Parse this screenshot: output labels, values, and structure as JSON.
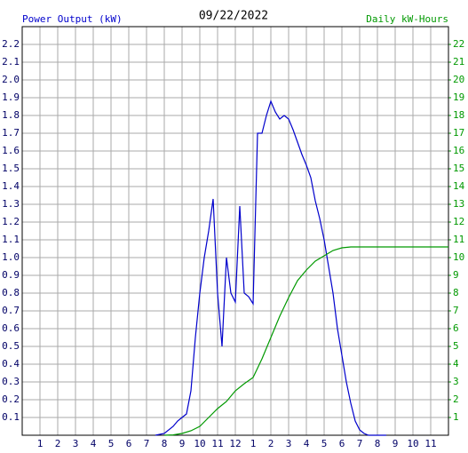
{
  "chart_data": {
    "type": "line",
    "title": "09/22/2022",
    "y_label": "Power Output (kW)",
    "y2_label": "Daily kW-Hours",
    "xlim": [
      0,
      24
    ],
    "xticks": [
      1,
      2,
      3,
      4,
      5,
      6,
      7,
      8,
      9,
      10,
      11,
      12,
      {
        "value": 13,
        "label": "1"
      },
      {
        "value": 14,
        "label": "2"
      },
      {
        "value": 15,
        "label": "3"
      },
      {
        "value": 16,
        "label": "4"
      },
      {
        "value": 17,
        "label": "5"
      },
      {
        "value": 18,
        "label": "6"
      },
      {
        "value": 19,
        "label": "7"
      },
      {
        "value": 20,
        "label": "8"
      },
      {
        "value": 21,
        "label": "9"
      },
      {
        "value": 22,
        "label": "10"
      },
      {
        "value": 23,
        "label": "11"
      }
    ],
    "ylim": [
      0,
      2.3
    ],
    "yticks": [
      0.1,
      0.2,
      0.3,
      0.4,
      0.5,
      0.6,
      0.7,
      0.8,
      0.9,
      {
        "value": 1,
        "label": "1.0"
      },
      1.1,
      1.2,
      1.3,
      1.4,
      1.5,
      1.6,
      1.7,
      1.8,
      1.9,
      {
        "value": 2,
        "label": "2.0"
      },
      2.1,
      2.2
    ],
    "y2lim": [
      0,
      23
    ],
    "y2ticks": [
      1,
      2,
      3,
      4,
      5,
      6,
      7,
      8,
      9,
      10,
      11,
      12,
      13,
      14,
      15,
      16,
      17,
      18,
      19,
      20,
      21,
      22
    ],
    "grid": true,
    "series": [
      {
        "name": "Power Output (kW)",
        "color": "#0000cc",
        "x": [
          7.5,
          8,
          8.5,
          8.75,
          9,
          9.25,
          9.5,
          9.75,
          10,
          10.25,
          10.5,
          10.75,
          11,
          11.25,
          11.5,
          11.75,
          12,
          12.25,
          12.5,
          12.75,
          13,
          13.25,
          13.5,
          13.75,
          14,
          14.25,
          14.5,
          14.75,
          15,
          15.25,
          15.5,
          15.75,
          16,
          16.25,
          16.5,
          16.75,
          17,
          17.25,
          17.5,
          17.75,
          18,
          18.25,
          18.5,
          18.75,
          19,
          19.25,
          19.5,
          20.5
        ],
        "values": [
          0,
          0.01,
          0.05,
          0.08,
          0.1,
          0.12,
          0.25,
          0.55,
          0.8,
          1.0,
          1.15,
          1.33,
          0.8,
          0.5,
          1.0,
          0.8,
          0.75,
          1.29,
          0.8,
          0.78,
          0.74,
          1.7,
          1.7,
          1.8,
          1.88,
          1.82,
          1.78,
          1.8,
          1.78,
          1.72,
          1.65,
          1.58,
          1.52,
          1.45,
          1.32,
          1.22,
          1.1,
          0.95,
          0.8,
          0.6,
          0.45,
          0.3,
          0.18,
          0.08,
          0.03,
          0.01,
          0,
          0
        ]
      },
      {
        "name": "Daily kW-Hours",
        "color": "#009900",
        "axis": "y2",
        "x": [
          8,
          8.5,
          9,
          9.5,
          10,
          10.5,
          11,
          11.5,
          12,
          12.5,
          13,
          13.5,
          14,
          14.5,
          15,
          15.5,
          16,
          16.5,
          17,
          17.5,
          18,
          18.5,
          19,
          24
        ],
        "values": [
          0,
          0.02,
          0.1,
          0.25,
          0.5,
          1.0,
          1.5,
          1.9,
          2.5,
          2.9,
          3.25,
          4.3,
          5.5,
          6.7,
          7.75,
          8.7,
          9.3,
          9.8,
          10.1,
          10.4,
          10.55,
          10.6,
          10.6,
          10.6
        ]
      }
    ]
  }
}
